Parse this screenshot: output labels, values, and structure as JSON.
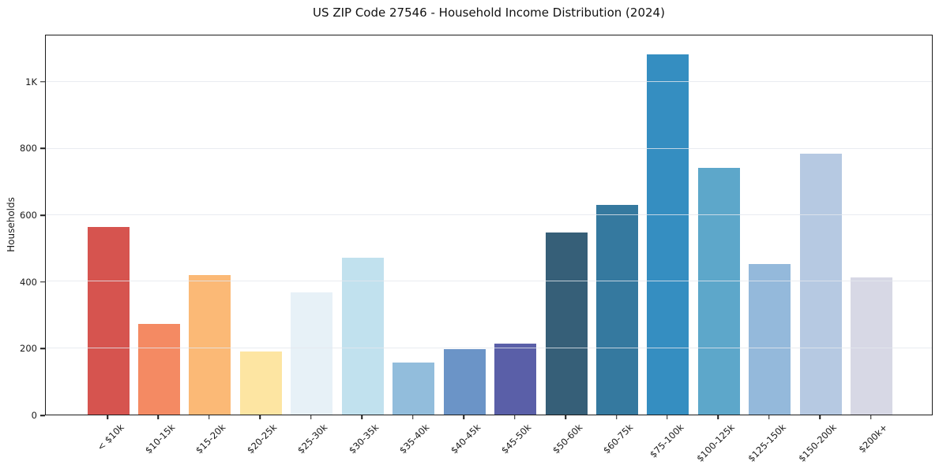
{
  "figure": {
    "title": "US ZIP Code 27546 - Household Income Distribution (2024)"
  },
  "chart_data": {
    "type": "bar",
    "title": "US ZIP Code 27546 - Household Income Distribution (2024)",
    "xlabel": "",
    "ylabel": "Households",
    "categories": [
      "< $10k",
      "$10-15k",
      "$15-20k",
      "$20-25k",
      "$25-30k",
      "$30-35k",
      "$35-40k",
      "$40-45k",
      "$45-50k",
      "$50-60k",
      "$60-75k",
      "$75-100k",
      "$100-125k",
      "$125-150k",
      "$150-200k",
      "$200k+"
    ],
    "values": [
      565,
      273,
      419,
      190,
      367,
      471,
      157,
      197,
      214,
      547,
      631,
      1085,
      743,
      452,
      786,
      412
    ],
    "bar_colors": [
      "#d6544f",
      "#f48a63",
      "#fbb976",
      "#fde5a2",
      "#e7f1f7",
      "#c1e1ee",
      "#92bddc",
      "#6b94c7",
      "#5a5fa8",
      "#365f78",
      "#35799f",
      "#358ec1",
      "#5da7ca",
      "#94b9db",
      "#b6c9e2",
      "#d7d8e5"
    ],
    "ylim": [
      0,
      1141
    ],
    "yticks": [
      0,
      200,
      400,
      600,
      800,
      1000
    ],
    "ytick_labels": [
      "0",
      "200",
      "400",
      "600",
      "800",
      "1K"
    ],
    "grid": "horizontal gridlines at yticks, light gray, drawn over bars",
    "legend": "none"
  },
  "style": {
    "background": "#ffffff",
    "grid_color": "#e7e9ee",
    "spine_color": "#1c1c1c",
    "text_color": "#1a1a1a"
  }
}
